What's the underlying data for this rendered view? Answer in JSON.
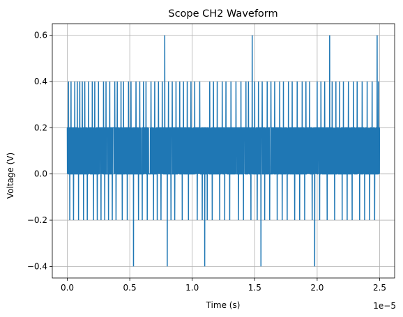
{
  "chart_data": {
    "type": "line",
    "title": "Scope CH2 Waveform",
    "xlabel": "Time (s)",
    "ylabel": "Voltage (V)",
    "x_offset_label": "1e−5",
    "xlim": [
      -1.2e-06,
      2.62e-05
    ],
    "ylim": [
      -0.45,
      0.65
    ],
    "grid": true,
    "x_ticks": [
      0,
      5e-06,
      1e-05,
      1.5e-05,
      2e-05,
      2.5e-05
    ],
    "x_tick_labels": [
      "0.0",
      "0.5",
      "1.0",
      "1.5",
      "2.0",
      "2.5"
    ],
    "y_ticks": [
      -0.4,
      -0.2,
      0.0,
      0.2,
      0.4,
      0.6
    ],
    "y_tick_labels": [
      "−0.4",
      "−0.2",
      "0.0",
      "0.2",
      "0.4",
      "0.6"
    ],
    "series": [
      {
        "color": "#1f77b4",
        "x_start": 0,
        "x_end": 2.5e-05,
        "sample_count": 2500,
        "sample_interval": 1e-08,
        "base_levels": [
          0.0,
          0.2
        ],
        "spikes_to_0.4_at": [
          1e-07,
          3e-07,
          6e-07,
          8e-07,
          1e-06,
          1.2e-06,
          1.4e-06,
          1.7e-06,
          2e-06,
          2.2e-06,
          2.5e-06,
          2.9e-06,
          3.1e-06,
          3.4e-06,
          3.8e-06,
          4e-06,
          4.3e-06,
          4.5e-06,
          4.9e-06,
          5.1e-06,
          5.5e-06,
          5.8e-06,
          6.1e-06,
          6.3e-06,
          6.7e-06,
          7e-06,
          7.3e-06,
          7.6e-06,
          8.1e-06,
          8.4e-06,
          8.7e-06,
          9e-06,
          9.3e-06,
          9.6e-06,
          9.9e-06,
          1.02e-05,
          1.06e-05,
          1.1e-05,
          1.14e-05,
          1.17e-05,
          1.2e-05,
          1.24e-05,
          1.27e-05,
          1.31e-05,
          1.35e-05,
          1.39e-05,
          1.43e-05,
          1.45e-05,
          1.5e-05,
          1.53e-05,
          1.56e-05,
          1.6e-05,
          1.63e-05,
          1.66e-05,
          1.7e-05,
          1.73e-05,
          1.77e-05,
          1.8e-05,
          1.84e-05,
          1.88e-05,
          1.91e-05,
          1.94e-05,
          2e-05,
          2.03e-05,
          2.06e-05,
          2.12e-05,
          2.15e-05,
          2.18e-05,
          2.21e-05,
          2.25e-05,
          2.29e-05,
          2.32e-05,
          2.36e-05,
          2.4e-05,
          2.44e-05,
          2.49e-05
        ],
        "spikes_to_-0.2_at": [
          2e-07,
          5e-07,
          9e-07,
          1.3e-06,
          1.6e-06,
          2.1e-06,
          2.4e-06,
          2.7e-06,
          3e-06,
          3.3e-06,
          3.6e-06,
          3.9e-06,
          4.4e-06,
          4.8e-06,
          5.3e-06,
          5.7e-06,
          6e-06,
          6.4e-06,
          6.9e-06,
          7.2e-06,
          7.5e-06,
          8.3e-06,
          8.6e-06,
          9.2e-06,
          9.7e-06,
          1.04e-05,
          1.08e-05,
          1.12e-05,
          1.16e-05,
          1.22e-05,
          1.26e-05,
          1.3e-05,
          1.37e-05,
          1.41e-05,
          1.47e-05,
          1.52e-05,
          1.58e-05,
          1.62e-05,
          1.68e-05,
          1.72e-05,
          1.76e-05,
          1.82e-05,
          1.86e-05,
          1.9e-05,
          1.96e-05,
          2.02e-05,
          2.08e-05,
          2.14e-05,
          2.2e-05,
          2.24e-05,
          2.28e-05,
          2.34e-05,
          2.38e-05,
          2.42e-05,
          2.46e-05,
          2.5e-05
        ],
        "peaks_to_0.6_at": [
          7.8e-06,
          1.48e-05,
          2.1e-05,
          2.48e-05
        ],
        "dips_to_-0.4_at": [
          5.3e-06,
          8e-06,
          1.1e-05,
          1.55e-05,
          1.98e-05
        ]
      }
    ]
  }
}
